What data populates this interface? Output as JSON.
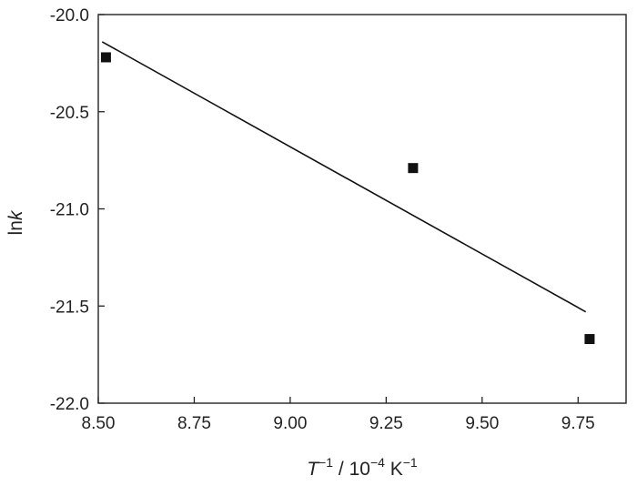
{
  "chart_data": {
    "type": "scatter",
    "title": "",
    "xlabel": {
      "parts": [
        {
          "text": "T",
          "italic": true
        },
        {
          "text": "−1",
          "sup": true
        },
        {
          "text": " / 10"
        },
        {
          "text": "−4",
          "sup": true
        },
        {
          "text": " K"
        },
        {
          "text": "−1",
          "sup": true
        }
      ]
    },
    "ylabel": {
      "parts": [
        {
          "text": "ln"
        },
        {
          "text": "k",
          "italic": true
        }
      ]
    },
    "xlim": [
      8.5,
      9.875
    ],
    "ylim": [
      -22.0,
      -20.0
    ],
    "xticks": [
      8.5,
      8.75,
      9.0,
      9.25,
      9.5,
      9.75
    ],
    "xtick_labels": [
      "8.50",
      "8.75",
      "9.00",
      "9.25",
      "9.50",
      "9.75"
    ],
    "yticks": [
      -20.0,
      -20.5,
      -21.0,
      -21.5,
      -22.0
    ],
    "ytick_labels": [
      "-20.0",
      "-20.5",
      "-21.0",
      "-21.5",
      "-22.0"
    ],
    "points": [
      {
        "x": 8.52,
        "y": -20.22
      },
      {
        "x": 9.32,
        "y": -20.79
      },
      {
        "x": 9.78,
        "y": -21.67
      }
    ],
    "fit_line": {
      "x": [
        8.51,
        9.77
      ],
      "y": [
        -20.14,
        -21.53
      ]
    },
    "grid": false,
    "legend": "none",
    "marker": "square",
    "color": "#111111"
  }
}
